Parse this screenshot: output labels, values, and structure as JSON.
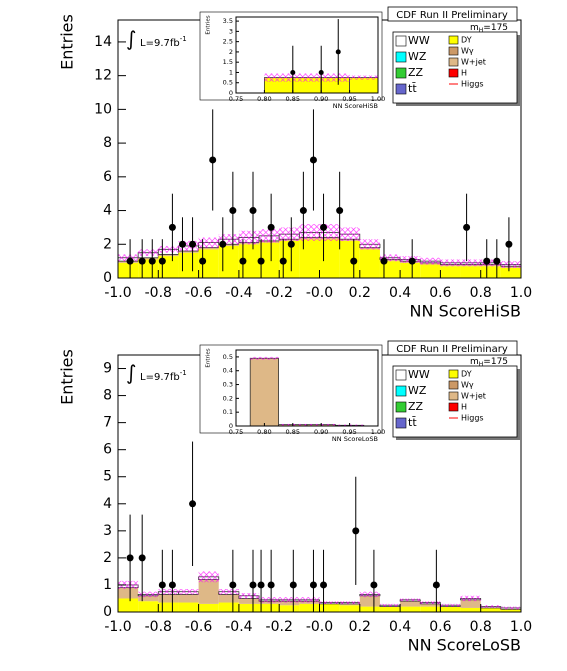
{
  "chart_data": [
    {
      "type": "histogram",
      "title": "CDF Run II Preliminary",
      "xlabel": "NN ScoreHiSB",
      "ylabel": "Entries",
      "lumi": "L=9.7fb",
      "lumi_exp": "-1",
      "mass": "m",
      "mass_sub": "H",
      "mass_value": "=175",
      "xlim": [
        -1,
        1
      ],
      "xticks": [
        {
          "value": -1,
          "label": "-1.0"
        },
        {
          "value": -0.8,
          "label": "-0.8"
        },
        {
          "value": -0.6,
          "label": "-0.6"
        },
        {
          "value": -0.4,
          "label": "-0.4"
        },
        {
          "value": -0.2,
          "label": "-0.2"
        },
        {
          "value": 0,
          "label": "-0.0"
        },
        {
          "value": 0.2,
          "label": "0.2"
        },
        {
          "value": 0.4,
          "label": "0.4"
        },
        {
          "value": 0.6,
          "label": "0.6"
        },
        {
          "value": 0.8,
          "label": "0.8"
        },
        {
          "value": 1,
          "label": "1.0"
        }
      ],
      "ylim": [
        0,
        15.3
      ],
      "yticks": [
        0,
        2,
        4,
        6,
        8,
        10,
        12,
        14
      ],
      "bins": [
        -1,
        -0.9,
        -0.8,
        -0.7,
        -0.6,
        -0.5,
        -0.4,
        -0.3,
        -0.2,
        -0.1,
        0,
        0.1,
        0.2,
        0.3,
        0.4,
        0.5,
        0.6,
        0.7,
        0.8,
        0.9,
        1
      ],
      "series": [
        {
          "name": "DY",
          "color": "#ffff00",
          "values": [
            0.9,
            1.1,
            1.3,
            1.5,
            1.7,
            1.9,
            2.0,
            2.1,
            2.2,
            2.3,
            2.3,
            2.2,
            1.7,
            1.0,
            0.9,
            0.8,
            0.7,
            0.7,
            0.7,
            0.6
          ]
        },
        {
          "name": "W+jet",
          "color": "#deb887",
          "values": [
            0.1,
            0.1,
            0.1,
            0.1,
            0.1,
            0.1,
            0.1,
            0.1,
            0.1,
            0.1,
            0.1,
            0.1,
            0.1,
            0.1,
            0.1,
            0.1,
            0.1,
            0.1,
            0.1,
            0.1
          ]
        },
        {
          "name": "WW",
          "color": "#ffffff",
          "values": [
            0.2,
            0.3,
            0.3,
            0.3,
            0.3,
            0.3,
            0.3,
            0.3,
            0.3,
            0.3,
            0.3,
            0.3,
            0.2,
            0.1,
            0.1,
            0.1,
            0.1,
            0.1,
            0.1,
            0.1
          ]
        }
      ],
      "legend_extra": [
        {
          "name": "WZ",
          "color": "#00ffff"
        },
        {
          "name": "ZZ",
          "color": "#33cc33"
        },
        {
          "name": "tt̄",
          "color": "#6666cc"
        },
        {
          "name": "Wγ",
          "color": "#cc9966"
        },
        {
          "name": "H",
          "color": "#ff0000"
        },
        {
          "name": "Higgs",
          "color": "#ff0000",
          "style": "line"
        }
      ],
      "band_color": "#ff00ff",
      "band_errors": [
        0.2,
        0.2,
        0.2,
        0.3,
        0.3,
        0.3,
        0.4,
        0.4,
        0.4,
        0.5,
        0.5,
        0.4,
        0.3,
        0.2,
        0.2,
        0.2,
        0.2,
        0.2,
        0.2,
        0.2
      ],
      "data": {
        "x": [
          -0.94,
          -0.88,
          -0.83,
          -0.78,
          -0.73,
          -0.68,
          -0.63,
          -0.58,
          -0.53,
          -0.48,
          -0.43,
          -0.38,
          -0.33,
          -0.29,
          -0.24,
          -0.18,
          -0.14,
          -0.08,
          -0.03,
          0.02,
          0.1,
          0.17,
          0.32,
          0.46,
          0.73,
          0.83,
          0.88,
          0.94
        ],
        "values": [
          1,
          1,
          1,
          1,
          3,
          2,
          2,
          1,
          7,
          2,
          4,
          1,
          4,
          1,
          3,
          1,
          2,
          4,
          7,
          3,
          4,
          1,
          1,
          1,
          3,
          1,
          1,
          2
        ],
        "errors": [
          1.3,
          1.3,
          1.3,
          1.3,
          2.0,
          1.6,
          1.6,
          1.3,
          3.0,
          1.6,
          2.3,
          1.3,
          2.3,
          1.3,
          2.0,
          1.3,
          1.6,
          2.3,
          3.0,
          2.0,
          2.3,
          1.3,
          1.3,
          1.3,
          2.0,
          1.3,
          1.3,
          1.6
        ]
      },
      "inset": {
        "xlabel": "NN ScoreHiSB",
        "ylabel": "Entries",
        "xlim": [
          0.75,
          1.0
        ],
        "xticks": [
          {
            "value": 0.75,
            "label": "0.75"
          },
          {
            "value": 0.8,
            "label": "0.80"
          },
          {
            "value": 0.85,
            "label": "0.85"
          },
          {
            "value": 0.9,
            "label": "0.90"
          },
          {
            "value": 0.95,
            "label": "0.95"
          },
          {
            "value": 1.0,
            "label": "1.00"
          }
        ],
        "ylim": [
          0,
          3.7
        ],
        "yticks": [
          0,
          0.5,
          1,
          1.5,
          2,
          2.5,
          3,
          3.5
        ],
        "bins": [
          0.75,
          0.8,
          0.85,
          0.9,
          0.95,
          1.0
        ],
        "series": [
          {
            "color": "#ffff00",
            "values": [
              0,
              0.75,
              0.75,
              0.75,
              0.75
            ]
          }
        ],
        "band_errors": [
          0,
          0.2,
          0.2,
          0.2,
          0.1
        ],
        "data": {
          "x": [
            0.85,
            0.9,
            0.93
          ],
          "values": [
            1,
            1,
            2
          ],
          "errors": [
            1.3,
            1.3,
            1.6
          ]
        }
      }
    },
    {
      "type": "histogram",
      "title": "CDF Run II Preliminary",
      "xlabel": "NN ScoreLoSB",
      "ylabel": "Entries",
      "lumi": "L=9.7fb",
      "lumi_exp": "-1",
      "mass": "m",
      "mass_sub": "H",
      "mass_value": "=175",
      "xlim": [
        -1,
        1
      ],
      "xticks": [
        {
          "value": -1,
          "label": "-1.0"
        },
        {
          "value": -0.8,
          "label": "-0.8"
        },
        {
          "value": -0.6,
          "label": "-0.6"
        },
        {
          "value": -0.4,
          "label": "-0.4"
        },
        {
          "value": -0.2,
          "label": "-0.2"
        },
        {
          "value": 0,
          "label": "-0.0"
        },
        {
          "value": 0.2,
          "label": "0.2"
        },
        {
          "value": 0.4,
          "label": "0.4"
        },
        {
          "value": 0.6,
          "label": "0.6"
        },
        {
          "value": 0.8,
          "label": "0.8"
        },
        {
          "value": 1,
          "label": "1.0"
        }
      ],
      "ylim": [
        0,
        9.5
      ],
      "yticks": [
        0,
        1,
        2,
        3,
        4,
        5,
        6,
        7,
        8,
        9
      ],
      "bins": [
        -1,
        -0.9,
        -0.8,
        -0.7,
        -0.6,
        -0.5,
        -0.4,
        -0.3,
        -0.2,
        -0.1,
        0,
        0.1,
        0.2,
        0.3,
        0.4,
        0.5,
        0.6,
        0.7,
        0.8,
        0.9,
        1
      ],
      "series": [
        {
          "name": "DY",
          "color": "#ffff00",
          "values": [
            0.5,
            0.4,
            0.35,
            0.35,
            0.3,
            0.35,
            0.3,
            0.3,
            0.25,
            0.3,
            0.3,
            0.25,
            0.2,
            0.2,
            0.2,
            0.2,
            0.2,
            0.15,
            0.15,
            0.1
          ]
        },
        {
          "name": "W+jet",
          "color": "#deb887",
          "values": [
            0.4,
            0.2,
            0.3,
            0.3,
            0.9,
            0.3,
            0.2,
            0.1,
            0.15,
            0.1,
            0,
            0.05,
            0.4,
            0,
            0.2,
            0.1,
            0,
            0.3,
            0,
            0
          ]
        },
        {
          "name": "WW",
          "color": "#ffffff",
          "values": [
            0.1,
            0.05,
            0.1,
            0.1,
            0.1,
            0.1,
            0.1,
            0.05,
            0.05,
            0.05,
            0.05,
            0.05,
            0.05,
            0.05,
            0.05,
            0.05,
            0.05,
            0.05,
            0.05,
            0.05
          ]
        }
      ],
      "legend_extra": [
        {
          "name": "WZ",
          "color": "#00ffff"
        },
        {
          "name": "ZZ",
          "color": "#33cc33"
        },
        {
          "name": "tt̄",
          "color": "#6666cc"
        },
        {
          "name": "Wγ",
          "color": "#cc9966"
        },
        {
          "name": "H",
          "color": "#ff0000"
        },
        {
          "name": "Higgs",
          "color": "#ff0000",
          "style": "line"
        }
      ],
      "band_color": "#ff00ff",
      "band_errors": [
        0.15,
        0.1,
        0.1,
        0.1,
        0.2,
        0.1,
        0.1,
        0.1,
        0.1,
        0.1,
        0.05,
        0.05,
        0.1,
        0.05,
        0.05,
        0.05,
        0.05,
        0.1,
        0.05,
        0.05
      ],
      "data": {
        "x": [
          -0.94,
          -0.88,
          -0.78,
          -0.73,
          -0.63,
          -0.43,
          -0.33,
          -0.29,
          -0.24,
          -0.13,
          -0.03,
          0.02,
          0.18,
          0.27,
          0.58
        ],
        "values": [
          2,
          2,
          1,
          1,
          4,
          1,
          1,
          1,
          1,
          1,
          1,
          1,
          3,
          1,
          1
        ],
        "errors": [
          1.6,
          1.6,
          1.3,
          1.3,
          2.3,
          1.3,
          1.3,
          1.3,
          1.3,
          1.3,
          1.3,
          1.3,
          2.0,
          1.3,
          1.3
        ]
      },
      "inset": {
        "xlabel": "NN ScoreLoSB",
        "ylabel": "Entries",
        "xlim": [
          0.75,
          1.0
        ],
        "xticks": [
          {
            "value": 0.75,
            "label": "0.75"
          },
          {
            "value": 0.8,
            "label": "0.80"
          },
          {
            "value": 0.85,
            "label": "0.85"
          },
          {
            "value": 0.9,
            "label": "0.90"
          },
          {
            "value": 0.95,
            "label": "0.95"
          },
          {
            "value": 1.0,
            "label": "1.00"
          }
        ],
        "ylim": [
          0,
          0.55
        ],
        "yticks": [
          0,
          0.1,
          0.2,
          0.3,
          0.4,
          0.5
        ],
        "bins": [
          0.775,
          0.825,
          0.875,
          0.925,
          0.975
        ],
        "series": [
          {
            "color": "#deb887",
            "values": [
              0.49,
              0.01,
              0.01,
              0.005
            ]
          }
        ],
        "band_errors": [
          0.01,
          0.005,
          0.005,
          0.005
        ]
      }
    }
  ]
}
